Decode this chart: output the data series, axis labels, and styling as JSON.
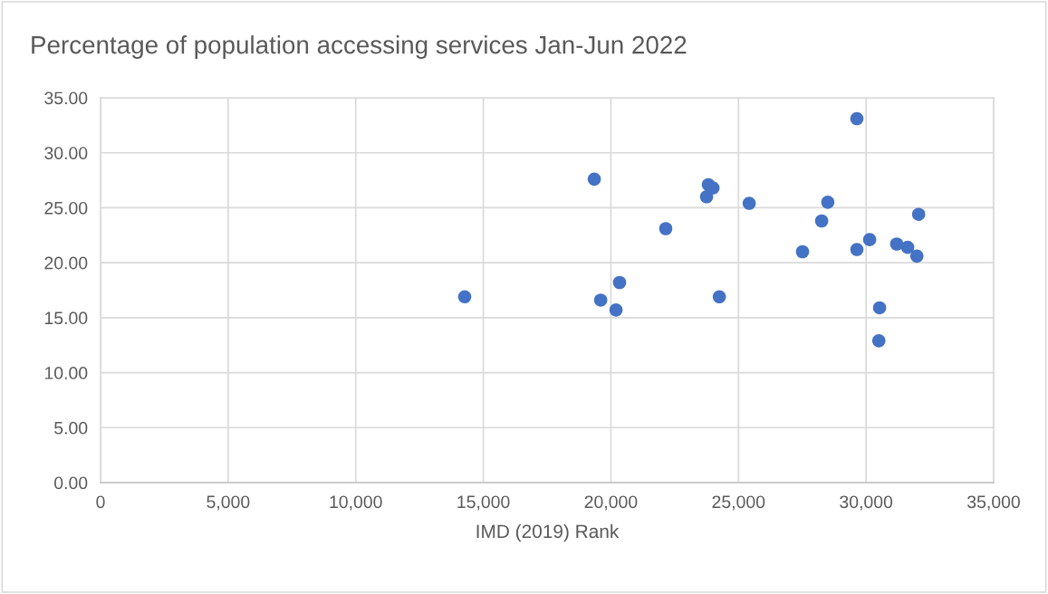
{
  "chart_data": {
    "type": "scatter",
    "title": "Percentage of population accessing services Jan-Jun 2022",
    "xlabel": "IMD (2019) Rank",
    "series": [
      {
        "color": "#4472c4",
        "x": [
          14270,
          19350,
          19600,
          20200,
          20340,
          22150,
          23750,
          23820,
          24000,
          24250,
          25420,
          27510,
          28260,
          28500,
          29640,
          29640,
          30140,
          30530,
          30500,
          31200,
          31630,
          31990,
          32060
        ],
        "values": [
          16.9,
          27.6,
          16.6,
          15.7,
          18.2,
          23.1,
          26.0,
          27.1,
          26.8,
          16.9,
          25.4,
          21.0,
          23.8,
          25.5,
          33.1,
          21.2,
          22.1,
          15.9,
          12.9,
          21.7,
          21.4,
          20.6,
          24.4
        ]
      }
    ],
    "marker": "circle",
    "grid": true,
    "xlim": [
      0,
      35000
    ],
    "ylim": [
      0,
      35
    ],
    "xticks": [
      0,
      {
        "value": 5000,
        "label": "5,000"
      },
      {
        "value": 10000,
        "label": "10,000"
      },
      {
        "value": 15000,
        "label": "15,000"
      },
      {
        "value": 20000,
        "label": "20,000"
      },
      {
        "value": 25000,
        "label": "25,000"
      },
      {
        "value": 30000,
        "label": "30,000"
      },
      {
        "value": 35000,
        "label": "35,000"
      }
    ],
    "yticks": [
      {
        "value": 0,
        "label": "0.00"
      },
      {
        "value": 5,
        "label": "5.00"
      },
      {
        "value": 10,
        "label": "10.00"
      },
      {
        "value": 15,
        "label": "15.00"
      },
      {
        "value": 20,
        "label": "20.00"
      },
      {
        "value": 25,
        "label": "25.00"
      },
      {
        "value": 30,
        "label": "30.00"
      },
      {
        "value": 35,
        "label": "35.00"
      }
    ]
  }
}
